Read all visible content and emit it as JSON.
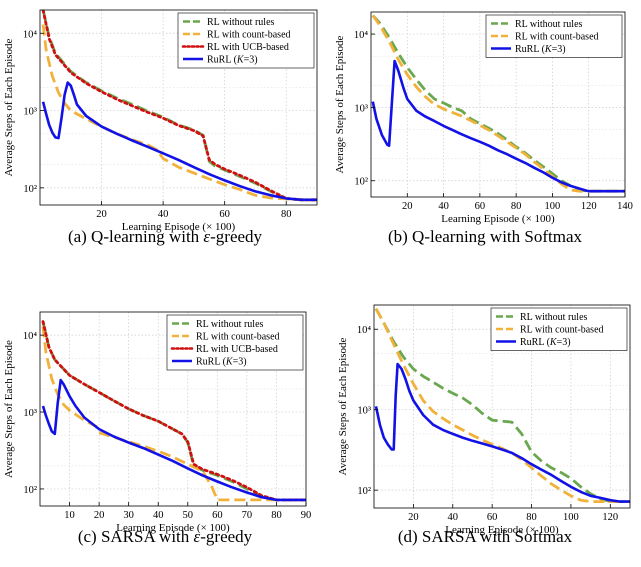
{
  "legend_texts": {
    "rules": "RL without rules",
    "count": "RL with count-based",
    "ucb": "RL with UCB-based",
    "rurl_prefix": "RuRL (",
    "rurl_k": "K",
    "rurl_suffix": "=3)"
  },
  "colors": {
    "rules": "#6aa84f",
    "count": "#f1b13a",
    "ucb": "#d01010",
    "rurl": "#1212e6",
    "grid": "#cccccc"
  },
  "chart_data": [
    {
      "id": "a",
      "type": "line",
      "caption_prefix": "(a) Q-learning with ",
      "caption_greek": "ε",
      "caption_suffix": "-greedy",
      "xlabel": "Learning Episode (× 100)",
      "ylabel": "Average Steps of Each Episode",
      "xlim": [
        0,
        90
      ],
      "ylim": [
        60,
        20000
      ],
      "yscale": "log",
      "xticks": [
        20,
        40,
        60,
        80
      ],
      "yticks": [
        100,
        1000,
        10000
      ],
      "ytick_labels": [
        "10²",
        "10³",
        "10⁴"
      ],
      "legend_placement": "top-right",
      "grid": true,
      "series": [
        {
          "name": "RL without rules",
          "key": "rules",
          "style": "dash",
          "x": [
            1,
            3,
            5,
            10,
            15,
            20,
            25,
            30,
            35,
            40,
            45,
            50,
            53,
            55,
            57,
            60,
            65,
            70,
            75,
            80,
            85,
            90
          ],
          "y": [
            20000,
            9000,
            5500,
            3200,
            2300,
            1800,
            1450,
            1200,
            980,
            820,
            650,
            560,
            480,
            220,
            190,
            170,
            140,
            115,
            90,
            72,
            70,
            70
          ]
        },
        {
          "name": "RL with count-based",
          "key": "count",
          "style": "dash",
          "x": [
            1,
            2,
            4,
            6,
            8,
            10,
            15,
            20,
            25,
            30,
            35,
            38,
            40,
            45,
            50,
            55,
            60,
            65,
            70,
            75,
            80,
            85,
            90
          ],
          "y": [
            13000,
            6000,
            2800,
            1700,
            1250,
            1000,
            780,
            620,
            500,
            420,
            360,
            310,
            240,
            185,
            155,
            130,
            110,
            95,
            80,
            74,
            72,
            70,
            70
          ]
        },
        {
          "name": "RL with UCB-based",
          "key": "ucb",
          "style": "dot",
          "x": [
            1,
            3,
            5,
            10,
            15,
            20,
            25,
            30,
            35,
            40,
            45,
            50,
            53,
            55,
            57,
            60,
            65,
            70,
            75,
            80,
            85,
            90
          ],
          "y": [
            20000,
            8500,
            5300,
            3100,
            2250,
            1750,
            1400,
            1150,
            950,
            800,
            640,
            550,
            470,
            230,
            200,
            175,
            145,
            118,
            92,
            73,
            70,
            70
          ]
        },
        {
          "name": "RuRL (K=3)",
          "key": "rurl",
          "style": "solid",
          "x": [
            1,
            2,
            3,
            4,
            5,
            6,
            7,
            8,
            9,
            10,
            11,
            12,
            15,
            20,
            25,
            30,
            35,
            40,
            45,
            50,
            55,
            60,
            65,
            70,
            75,
            80,
            85,
            90
          ],
          "y": [
            1300,
            900,
            650,
            520,
            450,
            440,
            800,
            1600,
            2300,
            2100,
            1600,
            1200,
            850,
            620,
            500,
            410,
            340,
            280,
            230,
            185,
            150,
            125,
            105,
            90,
            80,
            73,
            70,
            70
          ]
        }
      ]
    },
    {
      "id": "b",
      "type": "line",
      "caption_prefix": "(b) Q-learning with Softmax",
      "caption_greek": "",
      "caption_suffix": "",
      "xlabel": "Learning Episode (× 100)",
      "ylabel": "Average Steps of Each Episode",
      "xlim": [
        0,
        140
      ],
      "ylim": [
        60,
        20000
      ],
      "yscale": "log",
      "xticks": [
        20,
        40,
        60,
        80,
        100,
        120,
        140
      ],
      "yticks": [
        100,
        1000,
        10000
      ],
      "ytick_labels": [
        "10²",
        "10³",
        "10⁴"
      ],
      "legend_placement": "top-right",
      "grid": true,
      "series": [
        {
          "name": "RL without rules",
          "key": "rules",
          "style": "dash",
          "x": [
            1,
            5,
            10,
            15,
            20,
            25,
            30,
            35,
            40,
            45,
            50,
            55,
            60,
            65,
            70,
            75,
            80,
            85,
            90,
            95,
            100,
            105,
            110,
            115,
            120,
            130,
            140
          ],
          "y": [
            18000,
            14000,
            9000,
            5500,
            3500,
            2400,
            1700,
            1300,
            1150,
            1000,
            900,
            700,
            600,
            520,
            440,
            360,
            290,
            240,
            190,
            155,
            125,
            100,
            85,
            75,
            72,
            72,
            72
          ]
        },
        {
          "name": "RL with count-based",
          "key": "count",
          "style": "dash",
          "x": [
            1,
            5,
            10,
            15,
            20,
            25,
            30,
            35,
            40,
            45,
            50,
            55,
            60,
            65,
            70,
            75,
            80,
            85,
            90,
            95,
            100,
            105,
            110,
            115,
            120,
            130,
            140
          ],
          "y": [
            18000,
            13000,
            8000,
            4500,
            2800,
            1900,
            1400,
            1100,
            950,
            850,
            760,
            660,
            570,
            490,
            410,
            340,
            280,
            230,
            180,
            145,
            115,
            90,
            75,
            72,
            72,
            72,
            72
          ]
        },
        {
          "name": "RuRL (K=3)",
          "key": "rurl",
          "style": "solid",
          "x": [
            1,
            3,
            6,
            9,
            10,
            12,
            13,
            15,
            18,
            20,
            25,
            30,
            35,
            40,
            45,
            50,
            55,
            60,
            65,
            70,
            75,
            80,
            85,
            90,
            95,
            100,
            105,
            110,
            115,
            118,
            120,
            130,
            140
          ],
          "y": [
            1200,
            700,
            420,
            310,
            300,
            1800,
            4300,
            3200,
            1800,
            1300,
            900,
            750,
            650,
            560,
            490,
            430,
            380,
            340,
            300,
            260,
            230,
            200,
            175,
            150,
            130,
            110,
            95,
            85,
            78,
            74,
            72,
            72,
            72
          ]
        }
      ]
    },
    {
      "id": "c",
      "type": "line",
      "caption_prefix": "(c) SARSA with ",
      "caption_greek": "ε",
      "caption_suffix": "-greedy",
      "xlabel": "Learning Episode (× 100)",
      "ylabel": "Average Steps of Each Episode",
      "xlim": [
        0,
        90
      ],
      "ylim": [
        60,
        20000
      ],
      "yscale": "log",
      "xticks": [
        10,
        20,
        30,
        40,
        50,
        60,
        70,
        80,
        90
      ],
      "yticks": [
        100,
        1000,
        10000
      ],
      "ytick_labels": [
        "10²",
        "10³",
        "10⁴"
      ],
      "legend_placement": "top-right",
      "grid": true,
      "series": [
        {
          "name": "RL without rules",
          "key": "rules",
          "style": "dash",
          "x": [
            1,
            3,
            5,
            10,
            15,
            20,
            25,
            30,
            35,
            40,
            45,
            48,
            50,
            52,
            55,
            60,
            65,
            70,
            75,
            80,
            85,
            90
          ],
          "y": [
            15000,
            7000,
            4800,
            3000,
            2300,
            1800,
            1400,
            1100,
            900,
            760,
            600,
            520,
            400,
            200,
            175,
            150,
            125,
            100,
            80,
            72,
            72,
            72
          ]
        },
        {
          "name": "RL with count-based",
          "key": "count",
          "style": "dash",
          "x": [
            1,
            2,
            4,
            6,
            8,
            10,
            15,
            19,
            20,
            25,
            30,
            35,
            40,
            45,
            50,
            55,
            58,
            60,
            65,
            70,
            75,
            80,
            85,
            90
          ],
          "y": [
            13000,
            6000,
            2700,
            1700,
            1250,
            1050,
            780,
            650,
            540,
            470,
            410,
            360,
            310,
            260,
            210,
            170,
            110,
            72,
            72,
            72,
            72,
            72,
            72,
            72
          ]
        },
        {
          "name": "RL with UCB-based",
          "key": "ucb",
          "style": "dot",
          "x": [
            1,
            3,
            5,
            10,
            15,
            20,
            25,
            30,
            35,
            40,
            45,
            48,
            50,
            52,
            55,
            60,
            65,
            70,
            75,
            80,
            85,
            90
          ],
          "y": [
            15000,
            7000,
            4800,
            3000,
            2300,
            1800,
            1400,
            1100,
            900,
            760,
            600,
            520,
            410,
            210,
            180,
            155,
            130,
            105,
            82,
            72,
            72,
            72
          ]
        },
        {
          "name": "RuRL (K=3)",
          "key": "rurl",
          "style": "solid",
          "x": [
            1,
            2,
            3,
            4,
            5,
            6,
            7,
            8,
            10,
            12,
            15,
            20,
            25,
            30,
            35,
            40,
            45,
            50,
            55,
            60,
            65,
            70,
            75,
            80,
            85,
            90
          ],
          "y": [
            1200,
            900,
            700,
            560,
            520,
            1300,
            2600,
            2300,
            1600,
            1200,
            850,
            600,
            480,
            400,
            340,
            280,
            230,
            185,
            150,
            125,
            105,
            90,
            78,
            72,
            72,
            72
          ]
        }
      ]
    },
    {
      "id": "d",
      "type": "line",
      "caption_prefix": "(d) SARSA with Softmax",
      "caption_greek": "",
      "caption_suffix": "",
      "xlabel": "Learning Episode (× 100)",
      "ylabel": "Average Steps of Each Episode",
      "xlim": [
        0,
        130
      ],
      "ylim": [
        60,
        20000
      ],
      "yscale": "log",
      "xticks": [
        20,
        40,
        60,
        80,
        100,
        120
      ],
      "yticks": [
        100,
        1000,
        10000
      ],
      "ytick_labels": [
        "10²",
        "10³",
        "10⁴"
      ],
      "legend_placement": "top-right",
      "grid": true,
      "series": [
        {
          "name": "RL without rules",
          "key": "rules",
          "style": "dash",
          "x": [
            1,
            5,
            10,
            15,
            20,
            25,
            30,
            35,
            40,
            45,
            50,
            55,
            60,
            65,
            70,
            75,
            80,
            85,
            90,
            95,
            100,
            105,
            110,
            115,
            120,
            125,
            130
          ],
          "y": [
            18000,
            12000,
            7000,
            4500,
            3200,
            2600,
            2200,
            1850,
            1600,
            1400,
            1150,
            900,
            740,
            720,
            700,
            500,
            300,
            230,
            190,
            165,
            140,
            110,
            90,
            78,
            72,
            72,
            72
          ]
        },
        {
          "name": "RL with count-based",
          "key": "count",
          "style": "dash",
          "x": [
            1,
            5,
            10,
            15,
            20,
            25,
            30,
            35,
            40,
            45,
            50,
            55,
            60,
            65,
            70,
            75,
            80,
            85,
            90,
            95,
            100,
            105,
            110,
            115,
            120,
            125,
            130
          ],
          "y": [
            18000,
            12000,
            6500,
            3600,
            2100,
            1300,
            950,
            780,
            650,
            560,
            480,
            420,
            370,
            330,
            290,
            240,
            190,
            150,
            120,
            100,
            85,
            75,
            72,
            72,
            72,
            72,
            72
          ]
        },
        {
          "name": "RuRL (K=3)",
          "key": "rurl",
          "style": "solid",
          "x": [
            1,
            3,
            5,
            7,
            9,
            10,
            11,
            12,
            14,
            16,
            18,
            20,
            25,
            30,
            35,
            40,
            45,
            50,
            55,
            60,
            65,
            70,
            75,
            80,
            85,
            90,
            95,
            100,
            105,
            110,
            115,
            120,
            125,
            130
          ],
          "y": [
            1100,
            650,
            450,
            370,
            320,
            320,
            1500,
            3700,
            3200,
            2400,
            1700,
            1300,
            860,
            650,
            560,
            500,
            450,
            410,
            380,
            350,
            320,
            290,
            250,
            210,
            180,
            155,
            130,
            110,
            95,
            85,
            80,
            75,
            72,
            72
          ]
        }
      ]
    }
  ]
}
